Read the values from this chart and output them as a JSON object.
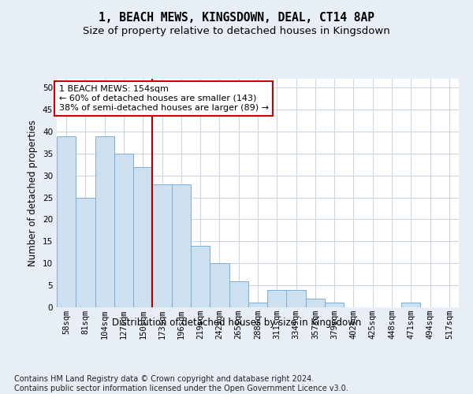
{
  "title": "1, BEACH MEWS, KINGSDOWN, DEAL, CT14 8AP",
  "subtitle": "Size of property relative to detached houses in Kingsdown",
  "xlabel": "Distribution of detached houses by size in Kingsdown",
  "ylabel": "Number of detached properties",
  "categories": [
    "58sqm",
    "81sqm",
    "104sqm",
    "127sqm",
    "150sqm",
    "173sqm",
    "196sqm",
    "219sqm",
    "242sqm",
    "265sqm",
    "288sqm",
    "311sqm",
    "334sqm",
    "357sqm",
    "379sqm",
    "402sqm",
    "425sqm",
    "448sqm",
    "471sqm",
    "494sqm",
    "517sqm"
  ],
  "values": [
    39,
    25,
    39,
    35,
    32,
    28,
    28,
    14,
    10,
    6,
    1,
    4,
    4,
    2,
    1,
    0,
    0,
    0,
    1,
    0,
    0
  ],
  "bar_color": "#cce0f0",
  "bar_edge_color": "#7aafd4",
  "annotation_text_line1": "1 BEACH MEWS: 154sqm",
  "annotation_text_line2": "← 60% of detached houses are smaller (143)",
  "annotation_text_line3": "38% of semi-detached houses are larger (89) →",
  "vline_color": "#aa0000",
  "annotation_box_facecolor": "#ffffff",
  "annotation_box_edgecolor": "#cc0000",
  "ylim": [
    0,
    52
  ],
  "yticks": [
    0,
    5,
    10,
    15,
    20,
    25,
    30,
    35,
    40,
    45,
    50
  ],
  "footer_line1": "Contains HM Land Registry data © Crown copyright and database right 2024.",
  "footer_line2": "Contains public sector information licensed under the Open Government Licence v3.0.",
  "fig_bg_color": "#e8eef5",
  "plot_bg_color": "#ffffff",
  "grid_color": "#c8d4e0",
  "title_fontsize": 10.5,
  "subtitle_fontsize": 9.5,
  "axis_label_fontsize": 8.5,
  "tick_fontsize": 7.5,
  "footer_fontsize": 7,
  "annotation_fontsize": 8,
  "vline_x_index": 4.5
}
